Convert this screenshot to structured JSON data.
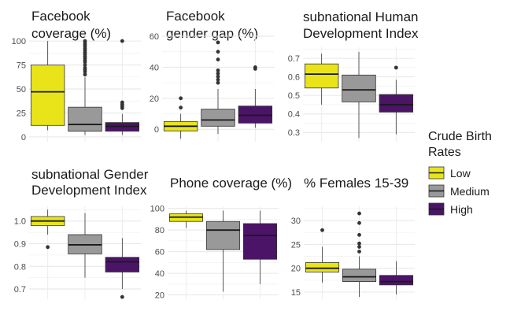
{
  "legend": {
    "title_lines": [
      "Crude Birth",
      "Rates"
    ],
    "items": [
      {
        "label": "Low",
        "color": "#E8E419"
      },
      {
        "label": "Medium",
        "color": "#999999"
      },
      {
        "label": "High",
        "color": "#4B1467"
      }
    ]
  },
  "chart_data": [
    {
      "type": "boxplot",
      "title_lines": [
        "Facebook",
        "coverage (%)"
      ],
      "ylim": [
        -5,
        105
      ],
      "yticks": [
        0,
        25,
        50,
        75,
        100
      ],
      "categories": [
        "Low",
        "Medium",
        "High"
      ],
      "boxes": [
        {
          "q1": 12,
          "median": 47,
          "q3": 75,
          "lo": 7,
          "hi": 100,
          "outliers": []
        },
        {
          "q1": 6,
          "median": 13,
          "q3": 31,
          "lo": 2,
          "hi": 62,
          "outliers": [
            65,
            68,
            70,
            72,
            75,
            78,
            80,
            82,
            84,
            86,
            88,
            90,
            92,
            94,
            96,
            98,
            100
          ]
        },
        {
          "q1": 6,
          "median": 11,
          "q3": 15,
          "lo": 2,
          "hi": 24,
          "outliers": [
            30,
            32,
            34,
            36,
            100
          ]
        }
      ]
    },
    {
      "type": "boxplot",
      "title_lines": [
        "Facebook",
        "gender gap (%)"
      ],
      "ylim": [
        -8,
        60
      ],
      "yticks": [
        0,
        20,
        40,
        60
      ],
      "categories": [
        "Low",
        "Medium",
        "High"
      ],
      "boxes": [
        {
          "q1": -1,
          "median": 2,
          "q3": 5,
          "lo": -6,
          "hi": 10,
          "outliers": [
            14,
            20
          ]
        },
        {
          "q1": 2,
          "median": 6,
          "q3": 13,
          "lo": -3,
          "hi": 26,
          "outliers": [
            30,
            32,
            34,
            36,
            38,
            45,
            50,
            56
          ]
        },
        {
          "q1": 4,
          "median": 9,
          "q3": 15,
          "lo": 1,
          "hi": 26,
          "outliers": [
            39,
            40
          ]
        }
      ]
    },
    {
      "type": "boxplot",
      "title_lines": [
        "subnational Human",
        "Development Index"
      ],
      "ylim": [
        0.25,
        0.76
      ],
      "yticks": [
        0.3,
        0.4,
        0.5,
        0.6,
        0.7
      ],
      "categories": [
        "Low",
        "Medium",
        "High"
      ],
      "boxes": [
        {
          "q1": 0.54,
          "median": 0.615,
          "q3": 0.67,
          "lo": 0.45,
          "hi": 0.725,
          "outliers": []
        },
        {
          "q1": 0.465,
          "median": 0.53,
          "q3": 0.61,
          "lo": 0.27,
          "hi": 0.735,
          "outliers": []
        },
        {
          "q1": 0.41,
          "median": 0.45,
          "q3": 0.505,
          "lo": 0.29,
          "hi": 0.585,
          "outliers": [
            0.65
          ]
        }
      ]
    },
    {
      "type": "boxplot",
      "title_lines": [
        "subnational Gender",
        "Development Index"
      ],
      "ylim": [
        0.655,
        1.065
      ],
      "yticks": [
        0.7,
        0.8,
        0.9,
        1.0
      ],
      "ytick_labels": [
        "0.7",
        "0.8",
        "0.9",
        "1.0"
      ],
      "categories": [
        "Low",
        "Medium",
        "High"
      ],
      "boxes": [
        {
          "q1": 0.98,
          "median": 1.0,
          "q3": 1.02,
          "lo": 0.94,
          "hi": 1.05,
          "outliers": [
            0.885
          ]
        },
        {
          "q1": 0.855,
          "median": 0.895,
          "q3": 0.94,
          "lo": 0.75,
          "hi": 1.035,
          "outliers": []
        },
        {
          "q1": 0.775,
          "median": 0.82,
          "q3": 0.84,
          "lo": 0.7,
          "hi": 0.925,
          "outliers": [
            0.665
          ]
        }
      ]
    },
    {
      "type": "boxplot",
      "title_lines": [
        "Phone coverage (%)"
      ],
      "ylim": [
        16,
        102
      ],
      "yticks": [
        20,
        40,
        60,
        80,
        100
      ],
      "categories": [
        "Low",
        "Medium",
        "High"
      ],
      "boxes": [
        {
          "q1": 88,
          "median": 92,
          "q3": 95,
          "lo": 82,
          "hi": 98,
          "outliers": []
        },
        {
          "q1": 62,
          "median": 80,
          "q3": 88,
          "lo": 23,
          "hi": 98,
          "outliers": []
        },
        {
          "q1": 53,
          "median": 75,
          "q3": 86,
          "lo": 30,
          "hi": 98,
          "outliers": []
        }
      ]
    },
    {
      "type": "boxplot",
      "title_lines": [
        "% Females 15-39"
      ],
      "ylim": [
        13.5,
        33
      ],
      "yticks": [
        15,
        20,
        25,
        30
      ],
      "categories": [
        "Low",
        "Medium",
        "High"
      ],
      "boxes": [
        {
          "q1": 19.2,
          "median": 20,
          "q3": 21.2,
          "lo": 17,
          "hi": 24.5,
          "outliers": [
            28
          ]
        },
        {
          "q1": 17.2,
          "median": 18.2,
          "q3": 19.8,
          "lo": 14,
          "hi": 22.5,
          "outliers": [
            23.5,
            24.5,
            25.2,
            27,
            29.5,
            31.5
          ]
        },
        {
          "q1": 16.5,
          "median": 17.2,
          "q3": 18.5,
          "lo": 14.5,
          "hi": 21.5,
          "outliers": []
        }
      ]
    }
  ]
}
